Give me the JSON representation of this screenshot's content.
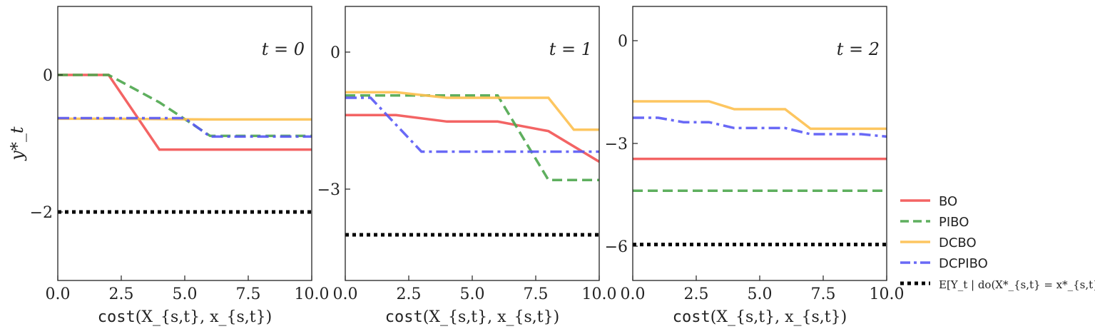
{
  "chart_data": [
    {
      "type": "line",
      "annotation": "t = 0",
      "xlabel": "cost(X_{s,t}, x_{s,t})",
      "ylabel": "y*_t",
      "xlim": [
        0,
        10
      ],
      "ylim": [
        -3,
        1
      ],
      "xticks": [
        0,
        2.5,
        5,
        7.5,
        10
      ],
      "xtick_labels": [
        "0.0",
        "2.5",
        "5.0",
        "7.5",
        "10.0"
      ],
      "yticks": [
        0,
        -2
      ],
      "ytick_labels": [
        "0",
        "−2"
      ],
      "series": [
        {
          "name": "BO",
          "x": [
            0,
            2,
            4,
            10
          ],
          "y": [
            0,
            0,
            -1.09,
            -1.09
          ]
        },
        {
          "name": "PIBO",
          "x": [
            0,
            2,
            4,
            6,
            10
          ],
          "y": [
            0,
            0,
            -0.4,
            -0.89,
            -0.89
          ]
        },
        {
          "name": "DCBO",
          "x": [
            0,
            2,
            6,
            10
          ],
          "y": [
            -0.64,
            -0.64,
            -0.65,
            -0.65
          ]
        },
        {
          "name": "DCPIBO",
          "x": [
            0,
            5,
            6,
            10
          ],
          "y": [
            -0.63,
            -0.63,
            -0.9,
            -0.9
          ]
        },
        {
          "name": "E[Y_t | do(X*_{s,t} = x*_{s,t})]",
          "x": [
            0,
            10
          ],
          "y": [
            -2,
            -2
          ]
        }
      ]
    },
    {
      "type": "line",
      "annotation": "t = 1",
      "xlabel": "cost(X_{s,t}, x_{s,t})",
      "ylabel": "",
      "xlim": [
        0,
        10
      ],
      "ylim": [
        -5,
        1
      ],
      "xticks": [
        0,
        2.5,
        5,
        7.5,
        10
      ],
      "xtick_labels": [
        "0.0",
        "2.5",
        "5.0",
        "7.5",
        "10.0"
      ],
      "yticks": [
        0,
        -3
      ],
      "ytick_labels": [
        "0",
        "−3"
      ],
      "series": [
        {
          "name": "BO",
          "x": [
            0,
            2,
            4,
            6,
            8,
            10
          ],
          "y": [
            -1.38,
            -1.38,
            -1.52,
            -1.52,
            -1.73,
            -2.4
          ]
        },
        {
          "name": "PIBO",
          "x": [
            0,
            6,
            8,
            10
          ],
          "y": [
            -0.95,
            -0.95,
            -2.8,
            -2.8
          ]
        },
        {
          "name": "DCBO",
          "x": [
            0,
            2,
            4,
            8,
            9,
            10
          ],
          "y": [
            -0.88,
            -0.88,
            -1.0,
            -1.0,
            -1.7,
            -1.7
          ]
        },
        {
          "name": "DCPIBO",
          "x": [
            0,
            1,
            3,
            10
          ],
          "y": [
            -1.0,
            -1.0,
            -2.18,
            -2.18
          ]
        },
        {
          "name": "E[Y_t | do(X*_{s,t} = x*_{s,t})]",
          "x": [
            0,
            10
          ],
          "y": [
            -4.0,
            -4.0
          ]
        }
      ]
    },
    {
      "type": "line",
      "annotation": "t = 2",
      "xlabel": "cost(X_{s,t}, x_{s,t})",
      "ylabel": "",
      "xlim": [
        0,
        10
      ],
      "ylim": [
        -7,
        1
      ],
      "xticks": [
        0,
        2.5,
        5,
        7.5,
        10
      ],
      "xtick_labels": [
        "0.0",
        "2.5",
        "5.0",
        "7.5",
        "10.0"
      ],
      "yticks": [
        0,
        -3,
        -6
      ],
      "ytick_labels": [
        "0",
        "−3",
        "−6"
      ],
      "series": [
        {
          "name": "BO",
          "x": [
            0,
            10
          ],
          "y": [
            -3.45,
            -3.45
          ]
        },
        {
          "name": "PIBO",
          "x": [
            0,
            10
          ],
          "y": [
            -4.38,
            -4.38
          ]
        },
        {
          "name": "DCBO",
          "x": [
            0,
            3,
            4,
            6,
            7,
            10
          ],
          "y": [
            -1.77,
            -1.77,
            -2.0,
            -2.0,
            -2.57,
            -2.57
          ]
        },
        {
          "name": "DCPIBO",
          "x": [
            0,
            1,
            2,
            3,
            4,
            6,
            7,
            9,
            10
          ],
          "y": [
            -2.25,
            -2.25,
            -2.38,
            -2.38,
            -2.55,
            -2.55,
            -2.73,
            -2.73,
            -2.8
          ]
        },
        {
          "name": "E[Y_t | do(X*_{s,t} = x*_{s,t})]",
          "x": [
            0,
            10
          ],
          "y": [
            -5.95,
            -5.95
          ]
        }
      ]
    }
  ],
  "legend": {
    "placement": "right",
    "items": [
      {
        "label": "BO",
        "color": "#f25353",
        "style": "solid"
      },
      {
        "label": "PIBO",
        "color": "#4ca64c",
        "style": "dashed"
      },
      {
        "label": "DCBO",
        "color": "#fdc04f",
        "style": "solid"
      },
      {
        "label": "DCPIBO",
        "color": "#5959f5",
        "style": "dashdot"
      },
      {
        "label": "E[Y_t | do(X*_{s,t} = x*_{s,t})]",
        "color": "#000000",
        "style": "dotted"
      }
    ]
  }
}
